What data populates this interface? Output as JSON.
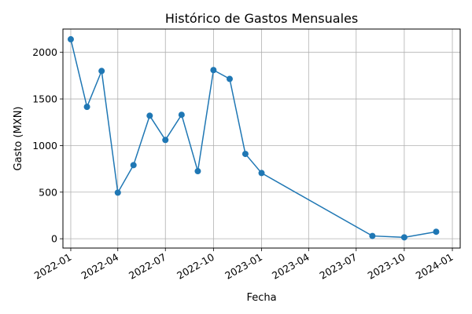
{
  "chart_data": {
    "type": "line",
    "title": "Histórico de Gastos Mensuales",
    "xlabel": "Fecha",
    "ylabel": "Gasto (MXN)",
    "x_axis_type": "date",
    "grid": true,
    "x_ticks": [
      "2022-01",
      "2022-04",
      "2022-07",
      "2022-10",
      "2023-01",
      "2023-04",
      "2023-07",
      "2023-10",
      "2024-01"
    ],
    "y_ticks": [
      0,
      500,
      1000,
      1500,
      2000
    ],
    "ylim": [
      -100,
      2250
    ],
    "xlim": [
      "2021-12-17",
      "2024-01-16"
    ],
    "line_color": "#1f77b4",
    "series": [
      {
        "x": [
          "2022-01-01",
          "2022-02-01",
          "2022-03-01",
          "2022-04-01",
          "2022-05-01",
          "2022-06-01",
          "2022-07-01",
          "2022-08-01",
          "2022-09-01",
          "2022-10-01",
          "2022-11-01",
          "2022-12-01",
          "2023-01-01",
          "2023-08-01",
          "2023-10-01",
          "2023-12-01"
        ],
        "values": [
          2140,
          1415,
          1800,
          495,
          790,
          1320,
          1060,
          1330,
          725,
          1810,
          1715,
          910,
          705,
          30,
          15,
          75
        ]
      }
    ]
  }
}
